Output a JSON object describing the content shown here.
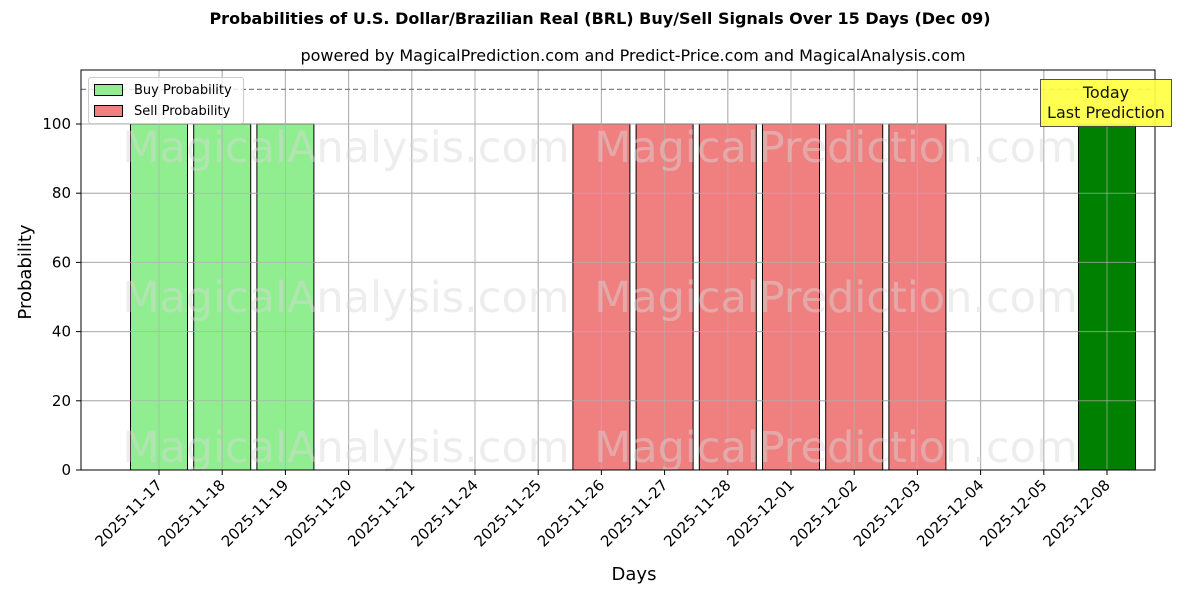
{
  "header": {
    "title": "Probabilities of U.S. Dollar/Brazilian Real (BRL) Buy/Sell Signals Over 15 Days (Dec 09)",
    "subtitle": "powered by MagicalPrediction.com and Predict-Price.com and MagicalAnalysis.com"
  },
  "legend": {
    "buy_label": "Buy Probability",
    "sell_label": "Sell Probability"
  },
  "annotation": {
    "line1": "Today",
    "line2": "Last Prediction"
  },
  "watermarks": [
    "MagicalAnalysis.com",
    "MagicalPrediction.com"
  ],
  "colors": {
    "buy": "#90ee90",
    "sell": "#f08080",
    "today": "#008000",
    "annotation_bg": "#ffff44",
    "grid": "#b0b0b0"
  },
  "chart_data": {
    "type": "bar",
    "title": "Probabilities of U.S. Dollar/Brazilian Real (BRL) Buy/Sell Signals Over 15 Days (Dec 09)",
    "subtitle": "powered by MagicalPrediction.com and Predict-Price.com and MagicalAnalysis.com",
    "xlabel": "Days",
    "ylabel": "Probability",
    "ylim": [
      0,
      115
    ],
    "yticks": [
      0,
      20,
      40,
      60,
      80,
      100
    ],
    "grid": true,
    "legend_position": "upper left",
    "reference_line": {
      "y": 110,
      "style": "dashed"
    },
    "categories": [
      "2025-11-17",
      "2025-11-18",
      "2025-11-19",
      "2025-11-20",
      "2025-11-21",
      "2025-11-24",
      "2025-11-25",
      "2025-11-26",
      "2025-11-27",
      "2025-11-28",
      "2025-12-01",
      "2025-12-02",
      "2025-12-03",
      "2025-12-04",
      "2025-12-05",
      "2025-12-08"
    ],
    "series": [
      {
        "name": "Buy Probability",
        "values": [
          100,
          100,
          100,
          0,
          0,
          0,
          0,
          0,
          0,
          0,
          0,
          0,
          0,
          0,
          0,
          100
        ]
      },
      {
        "name": "Sell Probability",
        "values": [
          0,
          0,
          0,
          0,
          0,
          0,
          0,
          100,
          100,
          100,
          100,
          100,
          100,
          0,
          0,
          0
        ]
      }
    ],
    "highlight": {
      "category": "2025-12-08",
      "label": "Today\nLast Prediction"
    }
  }
}
